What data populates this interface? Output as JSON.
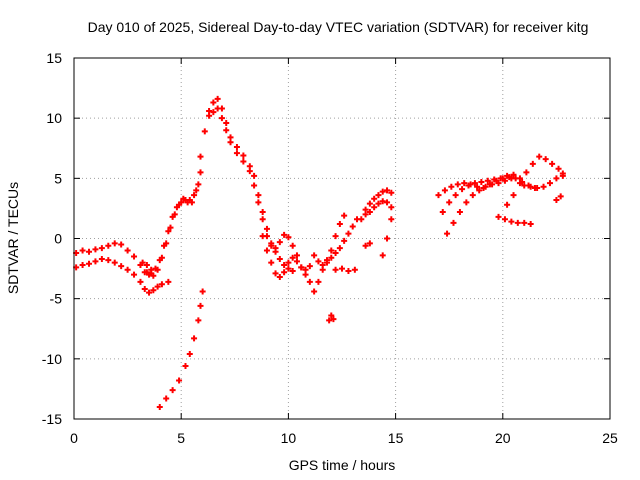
{
  "chart_data": {
    "type": "scatter",
    "title": "Day 010 of 2025, Sidereal Day-to-day VTEC variation (SDTVAR) for receiver kitg",
    "xlabel": "GPS time / hours",
    "ylabel": "SDTVAR / TECUs",
    "xlim": [
      0,
      25
    ],
    "ylim": [
      -15,
      15
    ],
    "x_ticks": [
      "0",
      "5",
      "10",
      "15",
      "20",
      "25"
    ],
    "y_ticks": [
      "15",
      "10",
      "5",
      "0",
      "-5",
      "-10",
      "-15"
    ],
    "grid": true,
    "marker": "+",
    "color": "#ff0000",
    "series": [
      {
        "x": [
          0.1,
          0.4,
          0.7,
          1.0,
          1.3,
          1.6,
          1.9,
          2.2,
          2.5,
          2.8,
          3.1,
          3.4,
          3.6
        ],
        "y": [
          -1.2,
          -1.0,
          -1.1,
          -0.9,
          -0.8,
          -0.6,
          -0.4,
          -0.5,
          -1.0,
          -1.5,
          -2.2,
          -2.8,
          -2.9
        ]
      },
      {
        "x": [
          0.1,
          0.4,
          0.7,
          1.0,
          1.3,
          1.6,
          1.9,
          2.2,
          2.5,
          2.8,
          3.1,
          3.3,
          3.5,
          3.7,
          3.9,
          4.1,
          4.4
        ],
        "y": [
          -2.4,
          -2.2,
          -2.1,
          -1.9,
          -1.7,
          -1.8,
          -2.0,
          -2.3,
          -2.6,
          -3.0,
          -3.6,
          -4.2,
          -4.5,
          -4.3,
          -4.0,
          -3.8,
          -3.6
        ]
      },
      {
        "x": [
          3.2,
          3.4,
          3.6,
          3.8,
          4.0,
          4.2,
          4.4,
          4.6,
          4.8,
          5.0,
          5.2,
          5.4,
          5.6,
          5.8,
          5.9
        ],
        "y": [
          -2.0,
          -2.2,
          -2.6,
          -2.5,
          -1.8,
          -0.6,
          0.6,
          1.8,
          2.6,
          3.0,
          3.2,
          3.2,
          3.6,
          4.5,
          5.5
        ]
      },
      {
        "x": [
          3.3,
          3.5,
          3.7,
          3.9,
          4.1,
          4.3,
          4.5,
          4.7,
          4.9,
          5.1,
          5.3,
          5.5,
          5.7
        ],
        "y": [
          -2.8,
          -3.0,
          -3.1,
          -2.6,
          -1.6,
          -0.4,
          0.9,
          2.0,
          2.8,
          3.3,
          3.0,
          3.0,
          4.0
        ]
      },
      {
        "x": [
          4.0,
          4.3,
          4.6,
          4.9,
          5.2,
          5.4,
          5.6,
          5.8,
          5.9,
          6.0
        ],
        "y": [
          -14.0,
          -13.3,
          -12.6,
          -11.8,
          -10.6,
          -9.6,
          -8.3,
          -6.8,
          -5.6,
          -4.4
        ]
      },
      {
        "x": [
          5.9,
          6.1,
          6.3,
          6.5,
          6.7,
          6.9,
          7.1,
          7.3,
          7.6,
          7.9,
          8.2,
          8.4,
          8.6,
          8.8,
          9.0,
          9.2,
          9.4,
          9.6,
          9.8,
          10.0,
          10.2
        ],
        "y": [
          6.8,
          8.9,
          10.6,
          11.3,
          11.6,
          10.8,
          9.6,
          8.4,
          7.6,
          6.9,
          6.0,
          5.2,
          3.6,
          2.2,
          0.8,
          -0.4,
          -1.1,
          -1.7,
          -2.2,
          -2.5,
          -2.7
        ]
      },
      {
        "x": [
          6.3,
          6.5,
          6.7,
          6.9,
          7.1,
          7.3,
          7.6,
          7.9,
          8.2,
          8.4,
          8.6,
          8.8,
          9.0,
          9.2,
          9.4,
          9.6,
          9.8,
          10.0,
          10.2,
          10.4
        ],
        "y": [
          10.2,
          10.5,
          10.8,
          10.0,
          9.0,
          8.0,
          7.1,
          6.4,
          5.6,
          4.4,
          3.0,
          1.6,
          0.2,
          -0.6,
          -0.8,
          -0.3,
          0.3,
          0.1,
          -0.6,
          -1.4
        ]
      },
      {
        "x": [
          8.8,
          9.0,
          9.2,
          9.4,
          9.6,
          9.8,
          10.0,
          10.2,
          10.4,
          10.6,
          10.8,
          11.0
        ],
        "y": [
          0.2,
          -1.0,
          -2.0,
          -2.9,
          -3.2,
          -2.8,
          -2.0,
          -1.6,
          -1.9,
          -2.4,
          -2.6,
          -2.3
        ]
      },
      {
        "x": [
          10.6,
          10.8,
          11.0,
          11.2,
          11.4,
          11.6,
          11.8,
          12.0,
          12.2,
          12.4,
          12.6
        ],
        "y": [
          -2.4,
          -3.0,
          -3.6,
          -4.4,
          -3.6,
          -2.6,
          -1.8,
          -1.0,
          0.2,
          1.2,
          1.9
        ]
      },
      {
        "x": [
          11.2,
          11.4,
          11.6,
          11.8,
          12.0,
          12.2,
          12.4,
          12.6,
          12.8,
          13.0,
          13.2
        ],
        "y": [
          -1.4,
          -1.9,
          -2.2,
          -2.0,
          -1.6,
          -1.2,
          -0.8,
          -0.2,
          0.4,
          1.0,
          1.6
        ]
      },
      {
        "x": [
          11.9,
          12.0,
          12.1
        ],
        "y": [
          -6.8,
          -6.4,
          -6.7
        ]
      },
      {
        "x": [
          12.2,
          12.5,
          12.8,
          13.1
        ],
        "y": [
          -2.6,
          -2.5,
          -2.7,
          -2.6
        ]
      },
      {
        "x": [
          13.4,
          13.6,
          13.8,
          14.0,
          14.2,
          14.4,
          14.6,
          14.8
        ],
        "y": [
          1.6,
          2.4,
          2.9,
          3.3,
          3.6,
          3.9,
          4.0,
          3.8
        ]
      },
      {
        "x": [
          13.6,
          13.8,
          14.0,
          14.2,
          14.4,
          14.6,
          14.8
        ],
        "y": [
          2.0,
          2.2,
          2.6,
          2.9,
          3.1,
          3.0,
          2.6
        ]
      },
      {
        "x": [
          14.4,
          14.6,
          14.8
        ],
        "y": [
          -1.4,
          0.0,
          1.6
        ]
      },
      {
        "x": [
          13.6,
          13.8
        ],
        "y": [
          -0.6,
          -0.4
        ]
      },
      {
        "x": [
          17.0,
          17.3,
          17.6,
          17.9,
          18.2,
          18.5,
          18.8,
          19.1,
          19.4,
          19.7,
          20.0,
          20.3,
          20.6,
          20.9,
          21.2,
          21.5
        ],
        "y": [
          3.6,
          4.0,
          4.3,
          4.5,
          4.6,
          4.5,
          4.3,
          4.2,
          4.5,
          4.8,
          5.0,
          5.1,
          5.0,
          4.7,
          4.4,
          4.2
        ]
      },
      {
        "x": [
          17.2,
          17.5,
          17.8,
          18.1,
          18.4,
          18.7,
          19.0,
          19.3,
          19.6,
          19.9,
          20.2,
          20.5,
          20.8
        ],
        "y": [
          2.2,
          3.0,
          3.6,
          4.1,
          4.4,
          4.6,
          4.7,
          4.8,
          4.9,
          5.0,
          5.2,
          5.3,
          5.0
        ]
      },
      {
        "x": [
          17.4,
          17.7,
          18.0,
          18.3,
          18.6,
          18.9,
          19.2,
          19.5,
          19.8,
          20.1,
          20.4
        ],
        "y": [
          0.4,
          1.3,
          2.2,
          3.0,
          3.6,
          4.0,
          4.3,
          4.5,
          4.6,
          4.8,
          5.0
        ]
      },
      {
        "x": [
          20.2,
          20.5,
          20.8,
          21.1,
          21.4,
          21.7,
          22.0,
          22.3,
          22.6,
          22.8
        ],
        "y": [
          2.8,
          3.6,
          4.6,
          5.5,
          6.2,
          6.8,
          6.6,
          6.2,
          5.8,
          5.4
        ]
      },
      {
        "x": [
          19.8,
          20.1,
          20.4,
          20.7,
          21.0,
          21.3
        ],
        "y": [
          1.8,
          1.6,
          1.4,
          1.3,
          1.3,
          1.2
        ]
      },
      {
        "x": [
          21.0,
          21.3,
          21.6,
          21.9,
          22.2,
          22.5,
          22.8
        ],
        "y": [
          4.4,
          4.3,
          4.2,
          4.3,
          4.6,
          5.0,
          5.2
        ]
      },
      {
        "x": [
          22.5,
          22.7
        ],
        "y": [
          3.2,
          3.5
        ]
      }
    ]
  }
}
